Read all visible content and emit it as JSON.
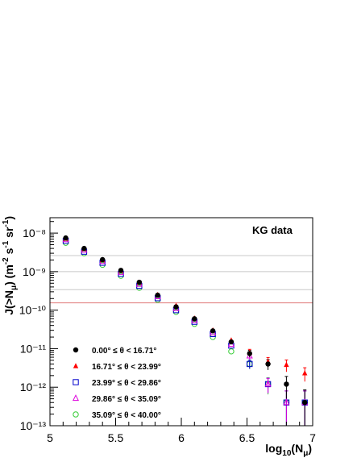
{
  "chart_data": {
    "type": "scatter",
    "annotation": "KG data",
    "xlabel": "log₁₀(N_μ)",
    "ylabel": "J(>N_μ) (m⁻² s⁻¹ sr⁻¹)",
    "xlim": [
      5,
      7
    ],
    "ylim_log10": [
      -13,
      -7.6
    ],
    "x_ticks": [
      "5",
      "5.5",
      "6",
      "6.5",
      "7"
    ],
    "y_ticks": [
      "10⁻⁸",
      "10⁻⁹",
      "10⁻¹⁰",
      "10⁻¹¹",
      "10⁻¹²",
      "10⁻¹³"
    ],
    "log_y": true,
    "grid": false,
    "legend_position": "bottom-left",
    "reference_lines": [
      {
        "y": 2.6e-09,
        "color": "#c8c8c8"
      },
      {
        "y": 1e-09,
        "color": "#c8c8c8"
      },
      {
        "y": 3.4e-10,
        "color": "#c8c8c8"
      },
      {
        "y": 1.55e-10,
        "color": "#e07a7a"
      }
    ],
    "series": [
      {
        "name": "0.00° ≤ θ < 16.71°",
        "marker": "filled-circle",
        "color": "#000000",
        "x": [
          5.12,
          5.26,
          5.4,
          5.54,
          5.68,
          5.82,
          5.96,
          6.1,
          6.24,
          6.38,
          6.52,
          6.66,
          6.8,
          6.94
        ],
        "y": [
          7.5e-09,
          4e-09,
          2.05e-09,
          1.08e-09,
          5.3e-10,
          2.45e-10,
          1.22e-10,
          6e-11,
          2.9e-11,
          1.5e-11,
          7.5e-12,
          4e-12,
          1.2e-12,
          4e-13
        ],
        "err_lo": [
          0,
          0,
          0,
          0,
          0,
          0,
          0,
          0,
          0,
          0,
          1.5e-12,
          1.2e-12,
          7e-13,
          3.2e-13
        ],
        "err_hi": [
          0,
          0,
          0,
          0,
          0,
          0,
          0,
          0,
          0,
          0,
          1.5e-12,
          1.2e-12,
          7e-13,
          4.5e-13
        ]
      },
      {
        "name": "16.71° ≤ θ < 23.99°",
        "marker": "filled-triangle",
        "color": "#ff0000",
        "x": [
          5.12,
          5.26,
          5.4,
          5.54,
          5.68,
          5.82,
          5.96,
          6.1,
          6.24,
          6.38,
          6.52,
          6.66,
          6.8,
          6.94
        ],
        "y": [
          7.2e-09,
          3.9e-09,
          2e-09,
          1.05e-09,
          5.2e-10,
          2.5e-10,
          1.3e-10,
          6.1e-11,
          3e-11,
          1.65e-11,
          8e-12,
          4.6e-12,
          3.8e-12,
          2.3e-12
        ],
        "err_lo": [
          0,
          0,
          0,
          0,
          0,
          0,
          0,
          0,
          0,
          0,
          1.6e-12,
          1.3e-12,
          1.3e-12,
          9e-13
        ],
        "err_hi": [
          0,
          0,
          0,
          0,
          0,
          0,
          0,
          0,
          0,
          0,
          1.6e-12,
          1.3e-12,
          1.3e-12,
          9e-13
        ]
      },
      {
        "name": "23.99° ≤ θ < 29.86°",
        "marker": "open-square",
        "color": "#0000cc",
        "x": [
          5.12,
          5.26,
          5.4,
          5.54,
          5.68,
          5.82,
          5.96,
          6.1,
          6.24,
          6.38,
          6.52,
          6.66,
          6.8,
          6.94
        ],
        "y": [
          6.3e-09,
          3.3e-09,
          1.7e-09,
          8.8e-10,
          4.3e-10,
          2.05e-10,
          1e-10,
          5e-11,
          2.4e-11,
          1.2e-11,
          4e-12,
          1.2e-12,
          4e-13,
          4e-13
        ],
        "err_lo": [
          0,
          0,
          0,
          0,
          0,
          0,
          0,
          0,
          0,
          0,
          1e-12,
          5e-13,
          3.2e-13,
          3.2e-13
        ],
        "err_hi": [
          0,
          0,
          0,
          0,
          0,
          0,
          0,
          0,
          0,
          0,
          1e-12,
          5e-13,
          4e-13,
          4e-13
        ]
      },
      {
        "name": "29.86° ≤ θ < 35.09°",
        "marker": "open-triangle",
        "color": "#dd00dd",
        "x": [
          5.12,
          5.26,
          5.4,
          5.54,
          5.68,
          5.82,
          5.96,
          6.1,
          6.24,
          6.38,
          6.52,
          6.66,
          6.8,
          6.94
        ],
        "y": [
          6.8e-09,
          3.6e-09,
          1.85e-09,
          9.6e-10,
          4.7e-10,
          2.25e-10,
          1.1e-10,
          5.4e-11,
          2.6e-11,
          1.3e-11,
          6.5e-12,
          1.2e-12,
          4e-13,
          4e-13
        ],
        "err_lo": [
          0,
          0,
          0,
          0,
          0,
          0,
          0,
          0,
          0,
          0,
          1.3e-12,
          5e-13,
          3.2e-13,
          3.2e-13
        ],
        "err_hi": [
          0,
          0,
          0,
          0,
          0,
          0,
          0,
          0,
          0,
          0,
          1.3e-12,
          5e-13,
          4e-13,
          4e-13
        ]
      },
      {
        "name": "35.09° ≤ θ < 40.00°",
        "marker": "open-circle",
        "color": "#33cc33",
        "x": [
          5.12,
          5.26,
          5.4,
          5.54,
          5.68,
          5.82,
          5.96,
          6.1,
          6.24,
          6.38,
          6.52,
          6.66,
          6.8,
          6.94
        ],
        "y": [
          5.6e-09,
          3e-09,
          1.5e-09,
          7.8e-10,
          3.8e-10,
          1.85e-10,
          9e-11,
          4.4e-11,
          2e-11,
          8.5e-12,
          4e-12,
          1.2e-12,
          4e-13,
          4e-13
        ],
        "err_lo": [
          0,
          0,
          0,
          0,
          0,
          0,
          0,
          0,
          0,
          0,
          1e-12,
          5.5e-13,
          3.2e-13,
          3.2e-13
        ],
        "err_hi": [
          0,
          0,
          0,
          0,
          0,
          0,
          0,
          0,
          0,
          0,
          1e-12,
          5.5e-13,
          4e-13,
          4e-13
        ]
      }
    ]
  }
}
